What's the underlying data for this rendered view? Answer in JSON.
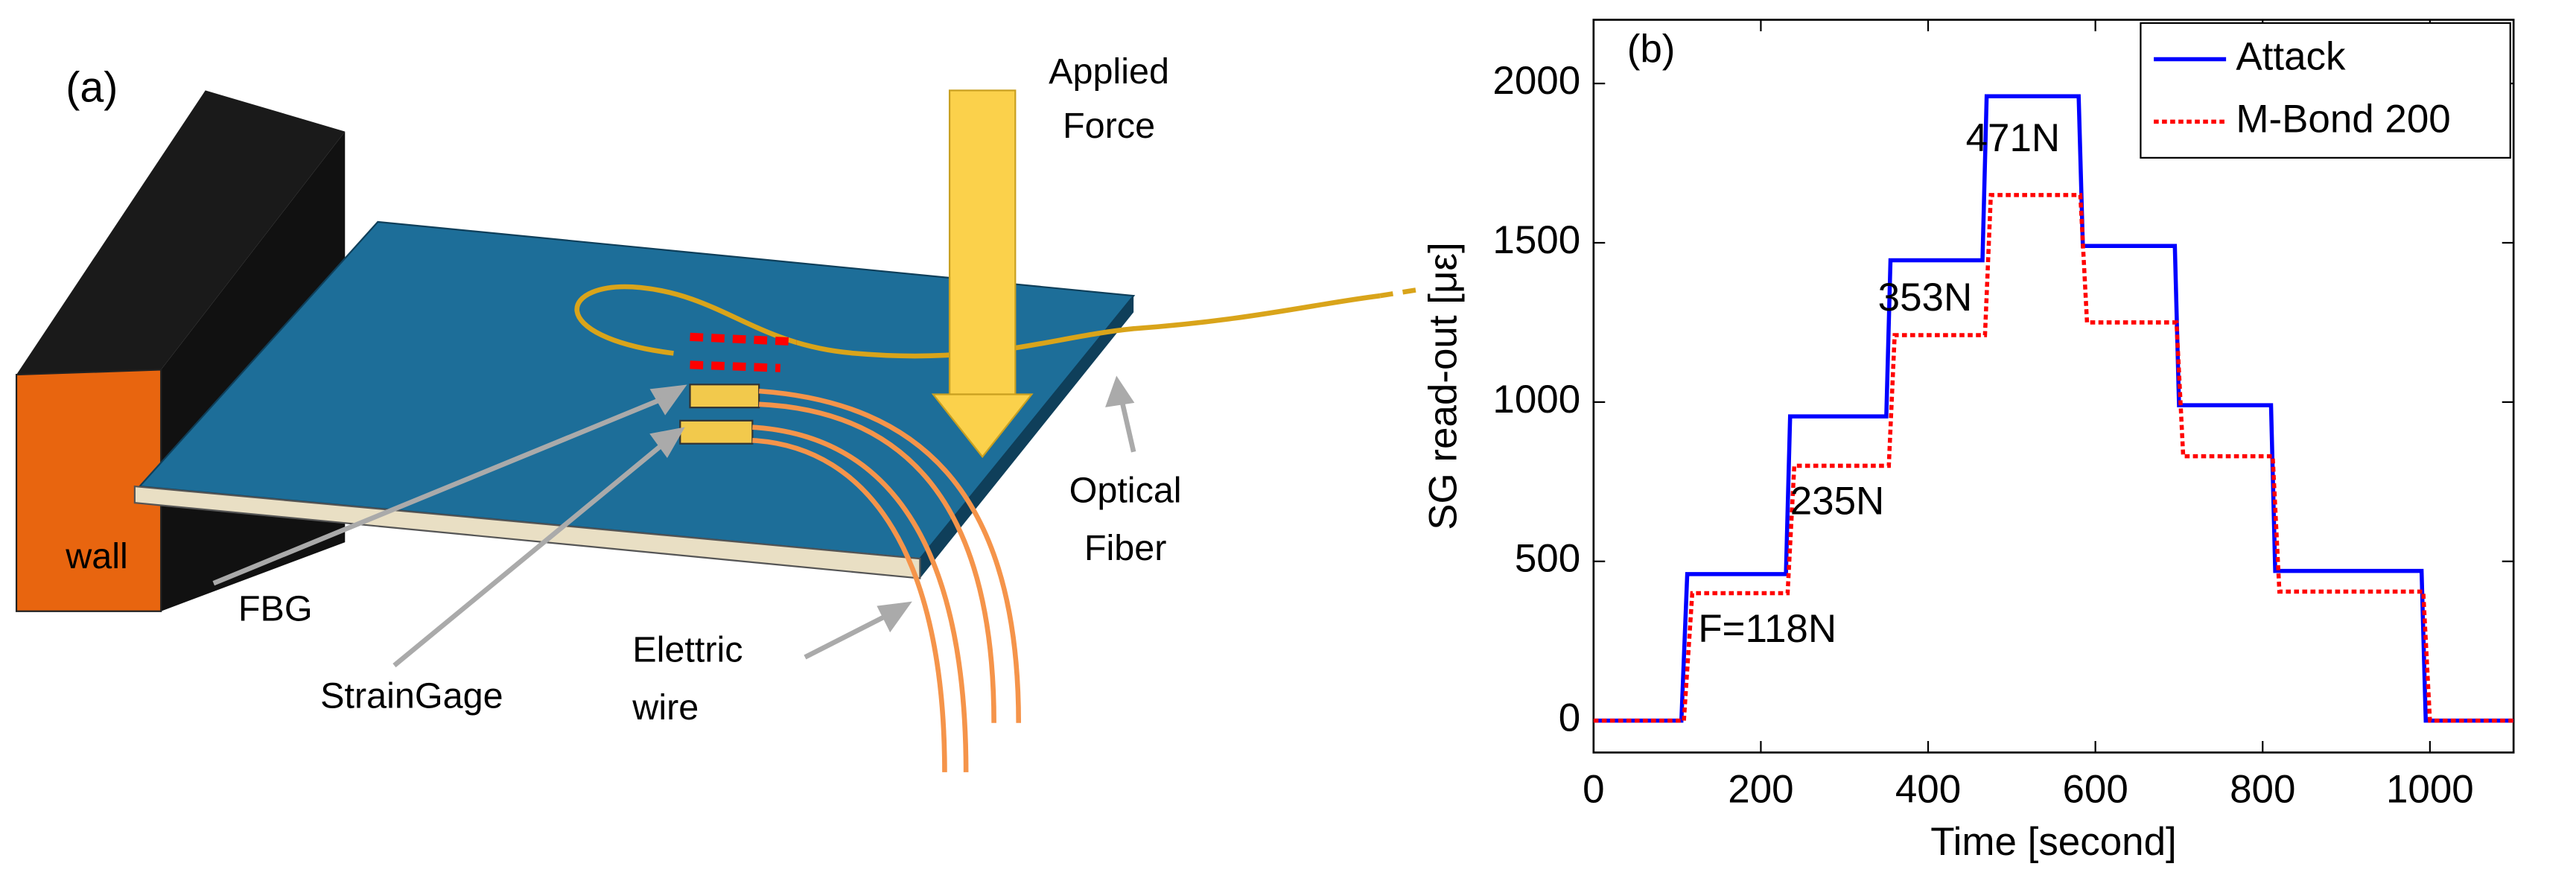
{
  "diagram": {
    "panel_label": "(a)",
    "force_label": [
      "Applied",
      "Force"
    ],
    "wall_label": "wall",
    "fbg_label": "FBG",
    "straingage_label": "StrainGage",
    "wire_label": [
      "Elettric",
      "wire"
    ],
    "fiber_label": [
      "Optical",
      "Fiber"
    ]
  },
  "chart_data": {
    "type": "line",
    "xlabel": "Time [second]",
    "ylabel": "SG read-out [με]",
    "xlim": [
      0,
      1100
    ],
    "ylim": [
      -100,
      2200
    ],
    "xticks": [
      0,
      200,
      400,
      600,
      800,
      1000
    ],
    "yticks": [
      0,
      500,
      1000,
      1500,
      2000
    ],
    "grid": false,
    "legend": "upper right",
    "series": [
      {
        "name": "Attack",
        "color": "#0000ff",
        "dash": "solid",
        "x": [
          0,
          105,
          112,
          230,
          235,
          350,
          355,
          465,
          470,
          580,
          585,
          695,
          700,
          810,
          815,
          990,
          995,
          1100
        ],
        "values": [
          0,
          0,
          460,
          460,
          955,
          955,
          1445,
          1445,
          1960,
          1960,
          1490,
          1490,
          990,
          990,
          470,
          470,
          0,
          0
        ]
      },
      {
        "name": "M-Bond 200",
        "color": "#ff0000",
        "dash": "dotted",
        "x": [
          0,
          108,
          118,
          232,
          240,
          353,
          360,
          468,
          475,
          582,
          590,
          697,
          705,
          812,
          820,
          992,
          1000,
          1100
        ],
        "values": [
          0,
          0,
          400,
          400,
          800,
          800,
          1210,
          1210,
          1650,
          1650,
          1250,
          1250,
          830,
          830,
          405,
          405,
          0,
          0
        ]
      }
    ],
    "annotations": [
      {
        "text": "(b)",
        "x": 40,
        "y": 2100
      },
      {
        "text": "F=118N",
        "x": 125,
        "y": 280
      },
      {
        "text": "235N",
        "x": 235,
        "y": 680
      },
      {
        "text": "353N",
        "x": 340,
        "y": 1320
      },
      {
        "text": "471N",
        "x": 445,
        "y": 1820
      }
    ]
  }
}
